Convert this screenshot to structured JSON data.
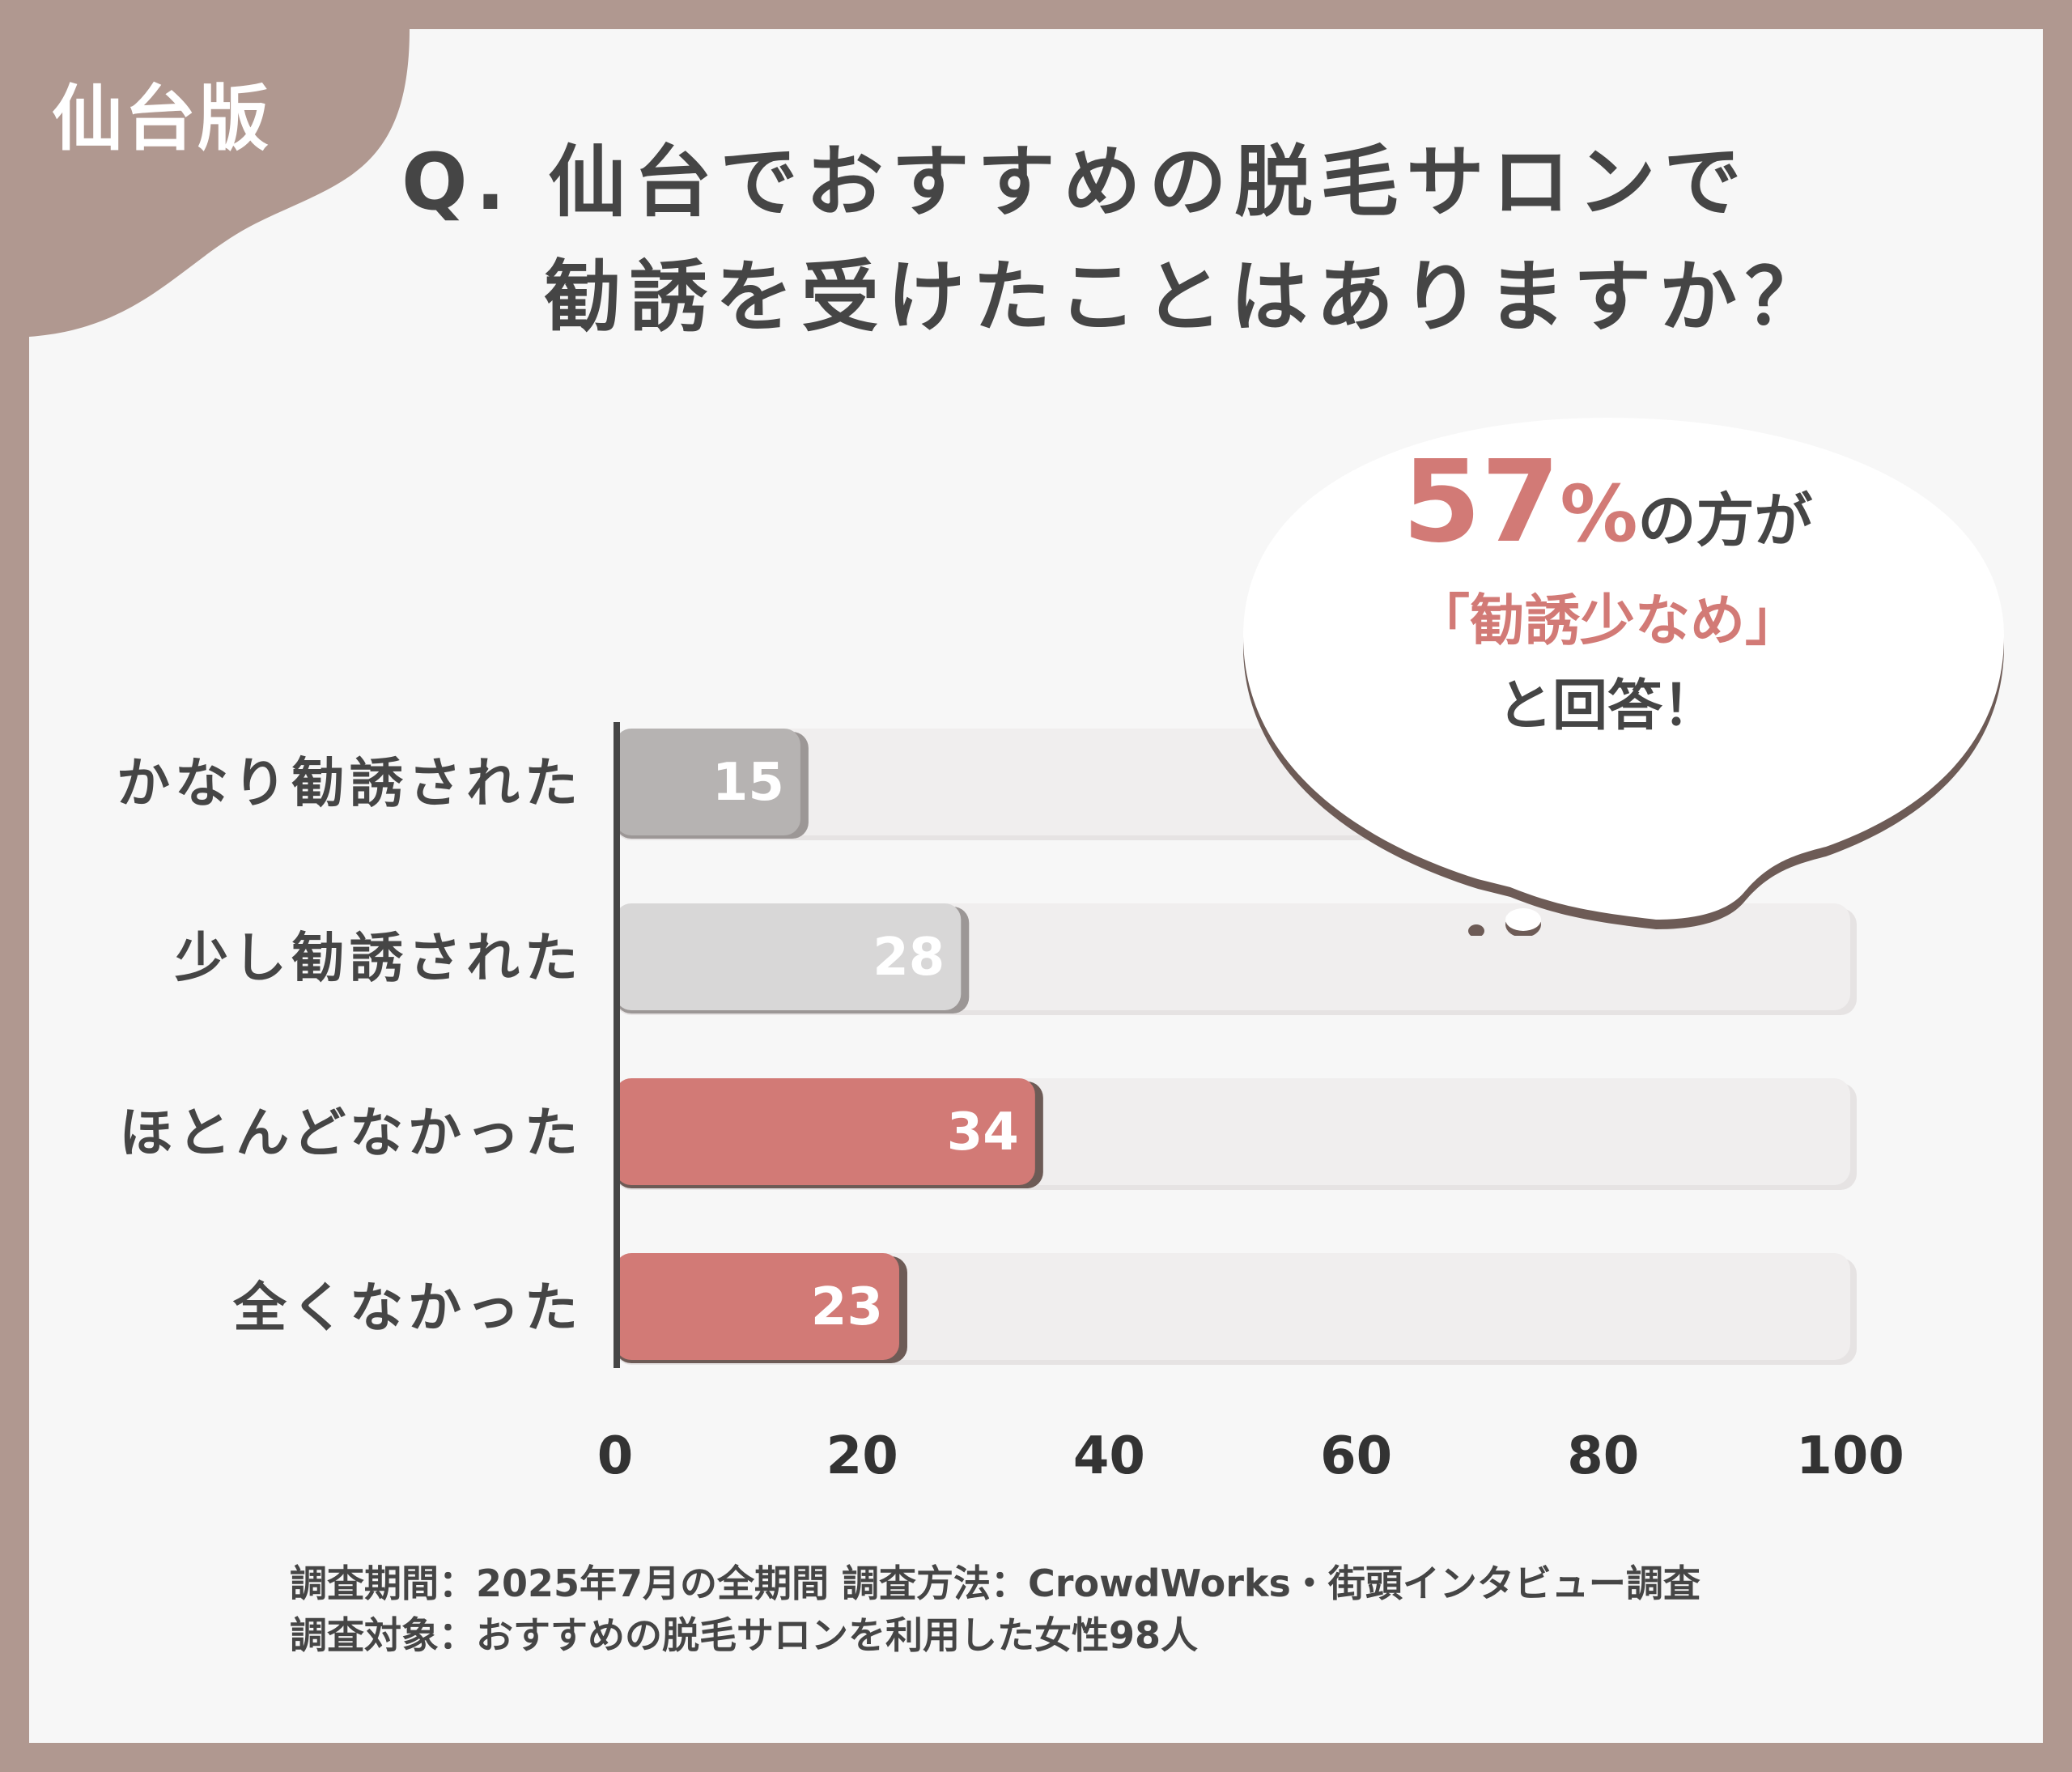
{
  "badge": {
    "label": "仙台版"
  },
  "title": {
    "line1": "Q. 仙台でおすすめの脱毛サロンで",
    "line2": "勧誘を受けたことはありますか？"
  },
  "callout": {
    "number": "57",
    "percent": "%",
    "suffix": "の方が",
    "quote": "「勧誘少なめ」",
    "ending": "と回答！"
  },
  "chart_data": {
    "type": "bar",
    "orientation": "horizontal",
    "categories": [
      "かなり勧誘された",
      "少し勧誘された",
      "ほとんどなかった",
      "全くなかった"
    ],
    "values": [
      15,
      28,
      34,
      23
    ],
    "value_labels": [
      "15",
      "28",
      "34",
      "23"
    ],
    "xlim": [
      0,
      100
    ],
    "xticks": [
      0,
      20,
      40,
      60,
      80,
      100
    ],
    "xtick_labels": [
      "0",
      "20",
      "40",
      "60",
      "80",
      "100"
    ],
    "bar_colors": [
      "#b6b3b2",
      "#d8d7d7",
      "#d27a76",
      "#d27a76"
    ],
    "track_color": "#f0eeee",
    "title": "",
    "xlabel": "",
    "ylabel": ""
  },
  "footnote": {
    "line1": "調査期間：2025年7月の全期間  調査方法：CrowdWorks・街頭インタビュー調査",
    "line2": "調査対象：おすすめの脱毛サロンを利用した女性98人"
  },
  "colors": {
    "frame": "#b09890",
    "accent": "#d27a76",
    "text": "#454545",
    "background": "#f7f7f7"
  }
}
